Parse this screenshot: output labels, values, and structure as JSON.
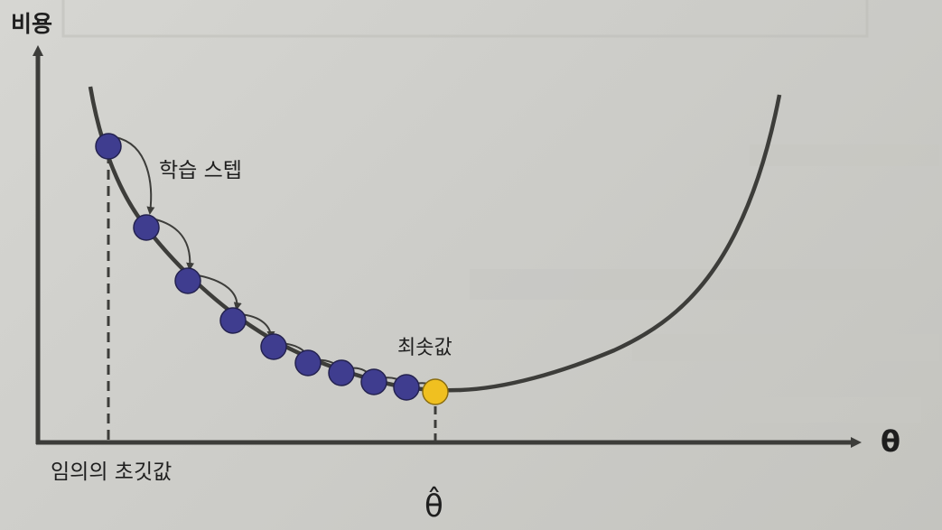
{
  "diagram": {
    "y_axis_label": "비용",
    "x_axis_label": "θ",
    "step_label": "학습 스텝",
    "minimum_label": "최솟값",
    "initial_value_label": "임의의 초깃값",
    "optimum_label": "θ̂",
    "colors": {
      "curve": "#3d3d3a",
      "axis": "#3d3d3a",
      "step_point": "#3f3d8f",
      "minimum_point": "#f0c020",
      "arrow": "#3d3d3a"
    },
    "step_count": 9
  }
}
